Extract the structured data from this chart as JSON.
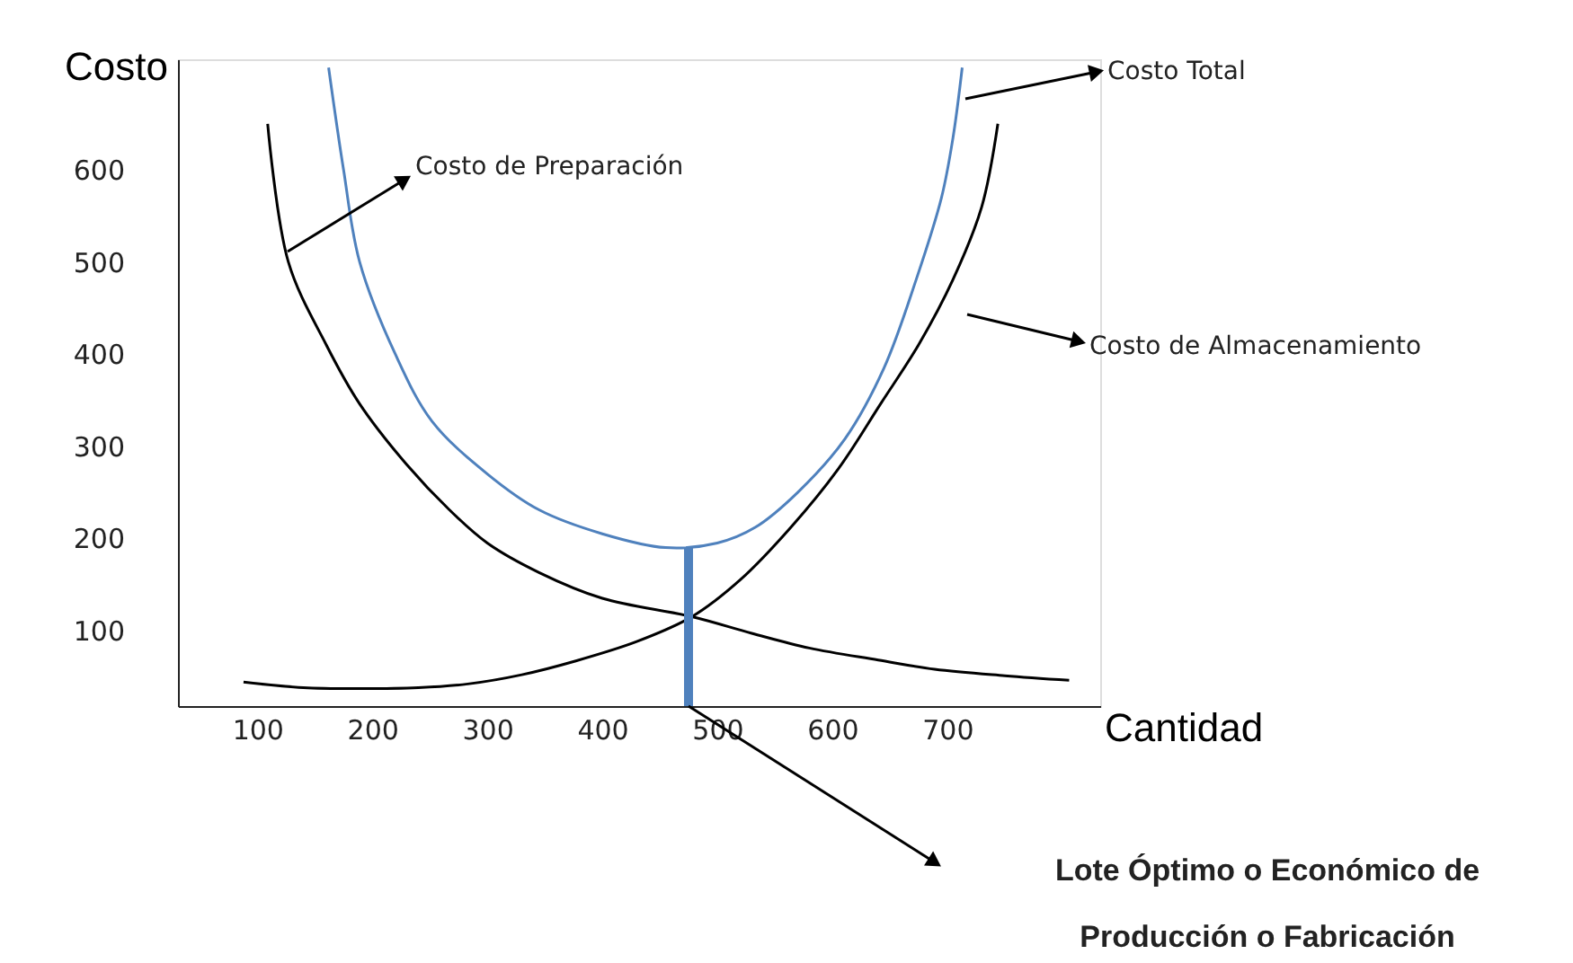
{
  "chart_data": {
    "type": "line",
    "xlabel": "Cantidad",
    "ylabel": "Costo",
    "xlim": [
      31,
      833
    ],
    "ylim": [
      18,
      720
    ],
    "xticks": [
      100,
      200,
      300,
      400,
      500,
      600,
      700
    ],
    "yticks": [
      100,
      200,
      300,
      400,
      500,
      600
    ],
    "grid": false,
    "series": [
      {
        "color": "#000000",
        "x": [
          109,
          127,
          160,
          189,
          230,
          267,
          300,
          345,
          400,
          478,
          530,
          580,
          640,
          689,
          750,
          806
        ],
        "values": [
          650,
          500,
          410,
          346,
          280,
          231,
          195,
          163,
          135,
          115,
          97,
          81,
          68,
          58,
          51,
          46
        ]
      },
      {
        "color": "#000000",
        "x": [
          88,
          140,
          189,
          240,
          283,
          330,
          377,
          430,
          478,
          520,
          564,
          605,
          642,
          675,
          705,
          730,
          744
        ],
        "values": [
          44,
          38,
          37,
          38,
          42,
          52,
          67,
          88,
          115,
          155,
          212,
          275,
          346,
          410,
          481,
          560,
          650
        ]
      },
      {
        "color": "#4f81bd",
        "x": [
          162,
          175,
          189,
          220,
          252,
          300,
          345,
          400,
          455,
          500,
          533,
          570,
          611,
          645,
          673,
          695,
          705,
          713
        ],
        "values": [
          711,
          600,
          500,
          400,
          327,
          270,
          231,
          205,
          190,
          195,
          212,
          250,
          308,
          385,
          481,
          570,
          635,
          711
        ]
      },
      {
        "color": "#4f81bd",
        "x": [
          475,
          475
        ],
        "values": [
          190,
          18
        ]
      }
    ],
    "annotations": [
      "Costo de Preparación",
      "Costo Total",
      "Costo de Almacenamiento",
      "Lote Óptimo o Económico de\nProducción o Fabricación"
    ]
  }
}
